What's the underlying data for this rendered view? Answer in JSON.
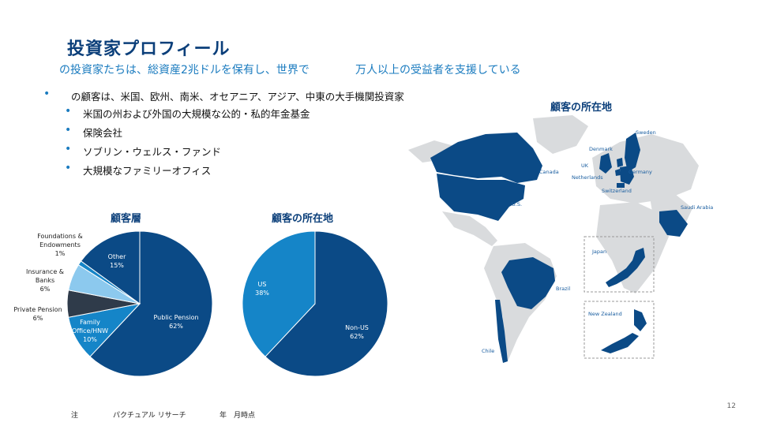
{
  "title": "投資家プロフィール",
  "subtitle": {
    "part1": "の投資家たちは、総資産2兆ドルを保有し、世界で",
    "part2": "万人以上の受益者を支援している"
  },
  "bullets": {
    "main": "の顧客は、米国、欧州、南米、オセアニア、アジア、中東の大手機関投資家",
    "subs": [
      "米国の州および外国の大規模な公的・私的年金基金",
      "保険会社",
      "ソブリン・ウェルス・ファンド",
      "大規模なファミリーオフィス"
    ]
  },
  "colors": {
    "dark_blue": "#0b4a86",
    "mid_blue": "#1585c8",
    "light_blue": "#8cc9ee",
    "charcoal": "#2f3b4a",
    "land_gray": "#d9dbdd",
    "accent_text": "#1a7bbf"
  },
  "chart_data": [
    {
      "type": "pie",
      "title": "顧客層",
      "slices": [
        {
          "label": "Public Pension",
          "value": 62,
          "display": "62%",
          "color": "#0b4a86"
        },
        {
          "label": "Family Office/HNW",
          "value": 10,
          "display": "10%",
          "color": "#1585c8"
        },
        {
          "label": "Private Pension",
          "value": 6,
          "display": "6%",
          "color": "#2f3b4a"
        },
        {
          "label": "Insurance & Banks",
          "value": 6,
          "display": "6%",
          "color": "#8cc9ee"
        },
        {
          "label": "Foundations & Endowments",
          "value": 1,
          "display": "1%",
          "color": "#1585c8"
        },
        {
          "label": "Other",
          "value": 15,
          "display": "15%",
          "color": "#0b4a86"
        }
      ]
    },
    {
      "type": "pie",
      "title": "顧客の所在地",
      "slices": [
        {
          "label": "Non-US",
          "value": 62,
          "display": "62%",
          "color": "#0b4a86"
        },
        {
          "label": "US",
          "value": 38,
          "display": "38%",
          "color": "#1585c8"
        }
      ]
    }
  ],
  "map": {
    "title": "顧客の所在地",
    "labels": [
      "Sweden",
      "Denmark",
      "UK",
      "Germany",
      "Netherlands",
      "Switzerland",
      "Canada",
      "U.S.",
      "Saudi Arabia",
      "Japan",
      "Brazil",
      "New Zealand",
      "Chile"
    ]
  },
  "footnote": {
    "a": "注",
    "b": "パクチュアル リサーチ",
    "c": "年　月時点"
  },
  "page_number": "12"
}
